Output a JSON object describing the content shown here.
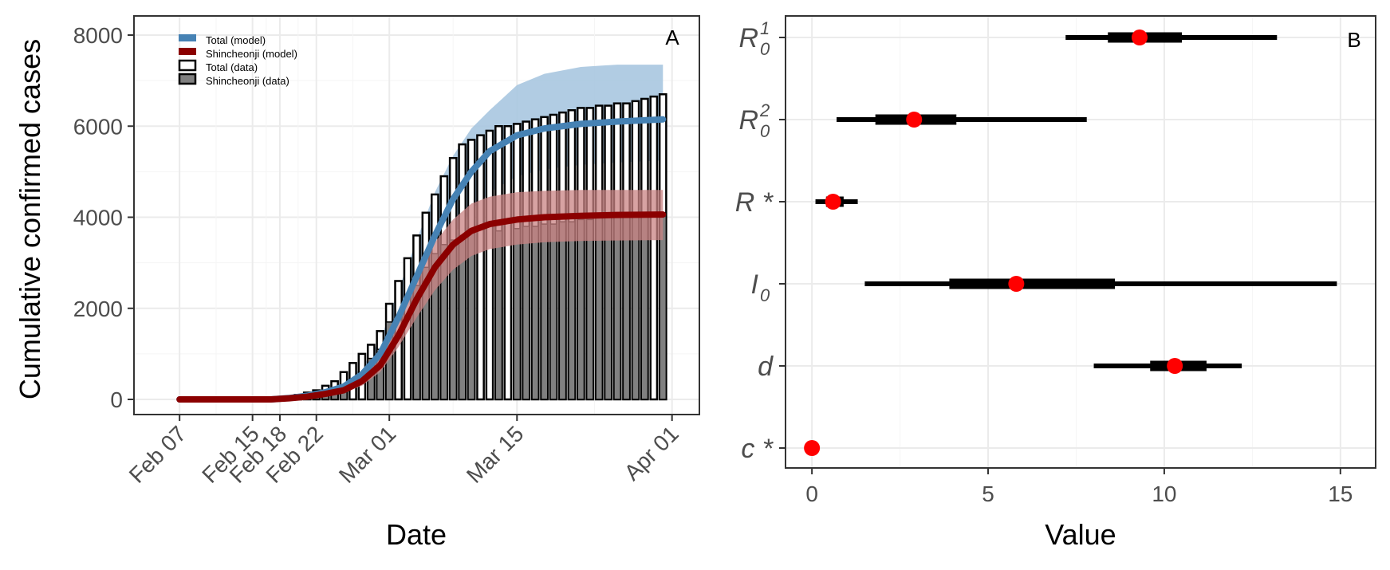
{
  "colors": {
    "total_model": "#4682b4",
    "total_band": "#a9c6e0",
    "shin_model": "#8b0000",
    "shin_band": "#c98383",
    "shin_bar": "#808080",
    "point": "#ff0000",
    "grid_major": "#ebebeb",
    "grid_minor": "#f5f5f5"
  },
  "chart_data": [
    {
      "panel": "A",
      "type": "bar+line",
      "xlabel": "Date",
      "ylabel": "Cumulative confirmed cases",
      "ylim": [
        0,
        8000
      ],
      "y_ticks": [
        0,
        2000,
        4000,
        6000,
        8000
      ],
      "x_tick_labels": [
        "Feb 07",
        "Feb 15",
        "Feb 18",
        "Feb 22",
        "Mar 01",
        "Mar 15",
        "Apr 01"
      ],
      "x_tick_dates": [
        "2020-02-07",
        "2020-02-15",
        "2020-02-18",
        "2020-02-22",
        "2020-03-01",
        "2020-03-15",
        "2020-04-01"
      ],
      "x_range": [
        "2020-02-02",
        "2020-04-04"
      ],
      "legend": {
        "position": "top-left",
        "entries": [
          "Total (model)",
          "Shincheonji (model)",
          "Total (data)",
          "Shincheonji (data)"
        ]
      },
      "dates": [
        "2020-02-18",
        "2020-02-19",
        "2020-02-20",
        "2020-02-21",
        "2020-02-22",
        "2020-02-23",
        "2020-02-24",
        "2020-02-25",
        "2020-02-26",
        "2020-02-27",
        "2020-02-28",
        "2020-02-29",
        "2020-03-01",
        "2020-03-02",
        "2020-03-03",
        "2020-03-04",
        "2020-03-05",
        "2020-03-06",
        "2020-03-07",
        "2020-03-08",
        "2020-03-09",
        "2020-03-10",
        "2020-03-11",
        "2020-03-12",
        "2020-03-13",
        "2020-03-14",
        "2020-03-15",
        "2020-03-16",
        "2020-03-17",
        "2020-03-18",
        "2020-03-19",
        "2020-03-20",
        "2020-03-21",
        "2020-03-22",
        "2020-03-23",
        "2020-03-24",
        "2020-03-25",
        "2020-03-26",
        "2020-03-27",
        "2020-03-28",
        "2020-03-29",
        "2020-03-30",
        "2020-03-31"
      ],
      "series": [
        {
          "name": "Total (data)",
          "kind": "bar",
          "values": [
            30,
            50,
            100,
            150,
            200,
            300,
            400,
            600,
            800,
            1000,
            1200,
            1500,
            2100,
            2600,
            3100,
            3600,
            4100,
            4500,
            4900,
            5300,
            5600,
            5700,
            5800,
            5900,
            6000,
            6000,
            6050,
            6100,
            6150,
            6200,
            6250,
            6300,
            6350,
            6400,
            6400,
            6450,
            6450,
            6500,
            6500,
            6550,
            6600,
            6650,
            6700
          ]
        },
        {
          "name": "Shincheonji (data)",
          "kind": "bar",
          "values": [
            20,
            30,
            60,
            80,
            100,
            200,
            250,
            300,
            0,
            0,
            900,
            1100,
            1700,
            0,
            0,
            2500,
            2900,
            3200,
            3400,
            3500,
            3600,
            3650,
            0,
            0,
            3700,
            0,
            3750,
            3800,
            3800,
            3850,
            3850,
            3900,
            3900,
            3950,
            3950,
            4000,
            4000,
            4000,
            4050,
            4050,
            4050,
            0,
            4100
          ]
        },
        {
          "name": "Total (model)",
          "kind": "line",
          "x": [
            "2020-02-07",
            "2020-02-17",
            "2020-02-19",
            "2020-02-21",
            "2020-02-23",
            "2020-02-25",
            "2020-02-27",
            "2020-02-29",
            "2020-03-02",
            "2020-03-04",
            "2020-03-06",
            "2020-03-08",
            "2020-03-10",
            "2020-03-12",
            "2020-03-15",
            "2020-03-18",
            "2020-03-22",
            "2020-03-26",
            "2020-03-31"
          ],
          "values": [
            0,
            0,
            30,
            80,
            160,
            280,
            550,
            1000,
            1800,
            2700,
            3600,
            4400,
            5000,
            5450,
            5800,
            5950,
            6050,
            6100,
            6150
          ],
          "band_low": [
            0,
            0,
            20,
            60,
            120,
            220,
            430,
            800,
            1450,
            2200,
            2950,
            3600,
            4150,
            4550,
            4900,
            5050,
            5150,
            5200,
            5250
          ],
          "band_high": [
            0,
            0,
            40,
            100,
            210,
            380,
            700,
            1300,
            2400,
            3500,
            4550,
            5350,
            5950,
            6350,
            6900,
            7150,
            7300,
            7350,
            7350
          ]
        },
        {
          "name": "Shincheonji (model)",
          "kind": "line",
          "x": [
            "2020-02-07",
            "2020-02-17",
            "2020-02-19",
            "2020-02-21",
            "2020-02-23",
            "2020-02-25",
            "2020-02-27",
            "2020-02-29",
            "2020-03-02",
            "2020-03-04",
            "2020-03-06",
            "2020-03-08",
            "2020-03-10",
            "2020-03-12",
            "2020-03-15",
            "2020-03-18",
            "2020-03-22",
            "2020-03-26",
            "2020-03-31"
          ],
          "values": [
            0,
            0,
            25,
            60,
            120,
            200,
            400,
            750,
            1400,
            2200,
            2900,
            3400,
            3700,
            3850,
            3950,
            4000,
            4030,
            4050,
            4060
          ],
          "band_low": [
            0,
            0,
            15,
            45,
            90,
            150,
            300,
            600,
            1150,
            1800,
            2400,
            2850,
            3150,
            3300,
            3400,
            3450,
            3480,
            3490,
            3500
          ],
          "band_high": [
            0,
            0,
            35,
            80,
            160,
            260,
            500,
            950,
            1700,
            2650,
            3450,
            3950,
            4300,
            4450,
            4550,
            4580,
            4600,
            4600,
            4600
          ]
        }
      ]
    },
    {
      "panel": "B",
      "type": "interval",
      "xlabel": "Value",
      "ylabel": "",
      "xlim": [
        -0.75,
        16.0
      ],
      "x_ticks": [
        0,
        5,
        10,
        15
      ],
      "parameters": [
        {
          "base": "R",
          "sub": "0",
          "sup": "1",
          "median": 9.3,
          "inner": [
            8.4,
            10.5
          ],
          "outer": [
            7.2,
            13.2
          ]
        },
        {
          "base": "R",
          "sub": "0",
          "sup": "2",
          "median": 2.9,
          "inner": [
            1.8,
            4.1
          ],
          "outer": [
            0.7,
            7.8
          ]
        },
        {
          "base": "R*",
          "sub": "",
          "sup": "",
          "median": 0.6,
          "inner": [
            0.4,
            0.9
          ],
          "outer": [
            0.1,
            1.3
          ]
        },
        {
          "base": "I",
          "sub": "0",
          "sup": "",
          "median": 5.8,
          "inner": [
            3.9,
            8.6
          ],
          "outer": [
            1.5,
            14.9
          ]
        },
        {
          "base": "d",
          "sub": "",
          "sup": "",
          "median": 10.3,
          "inner": [
            9.6,
            11.2
          ],
          "outer": [
            8.0,
            12.2
          ]
        },
        {
          "base": "c*",
          "sub": "",
          "sup": "",
          "median": 0.0,
          "inner": null,
          "outer": null
        }
      ]
    }
  ]
}
